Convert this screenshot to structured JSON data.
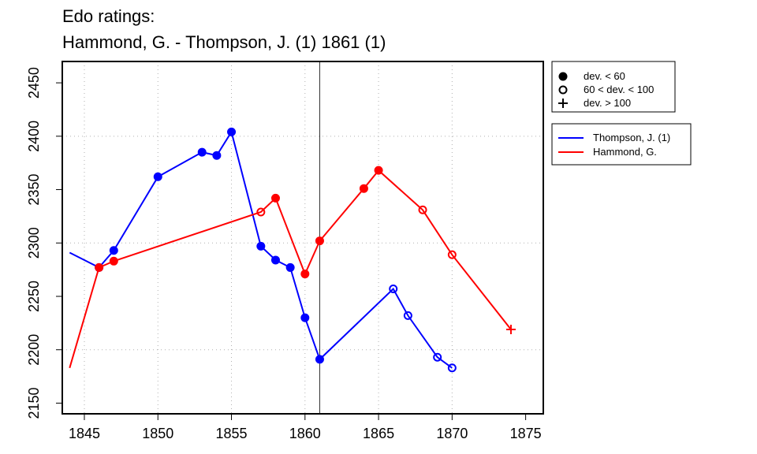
{
  "chart_data": {
    "type": "line",
    "title": "Edo ratings:",
    "subtitle": "Hammond, G. - Thompson, J. (1) 1861 (1)",
    "xlabel": "",
    "ylabel": "",
    "xlim": [
      1843.5,
      1876.2
    ],
    "ylim": [
      2140,
      2470
    ],
    "x_ticks": [
      1845,
      1850,
      1855,
      1860,
      1865,
      1870,
      1875
    ],
    "y_ticks": [
      2150,
      2200,
      2250,
      2300,
      2350,
      2400,
      2450
    ],
    "grid": "dotted at x=1845,1850,1855,1860,1865,1870 and y=2200,2300,2400",
    "reference_line_x": 1861,
    "series": [
      {
        "name": "Thompson, J. (1)",
        "color": "#0000ff",
        "points": [
          {
            "x": 1844,
            "y": 2291,
            "marker": "none"
          },
          {
            "x": 1846,
            "y": 2277,
            "marker": "filled"
          },
          {
            "x": 1847,
            "y": 2293,
            "marker": "filled"
          },
          {
            "x": 1850,
            "y": 2362,
            "marker": "filled"
          },
          {
            "x": 1853,
            "y": 2385,
            "marker": "filled"
          },
          {
            "x": 1854,
            "y": 2382,
            "marker": "filled"
          },
          {
            "x": 1855,
            "y": 2404,
            "marker": "filled"
          },
          {
            "x": 1857,
            "y": 2297,
            "marker": "filled"
          },
          {
            "x": 1858,
            "y": 2284,
            "marker": "filled"
          },
          {
            "x": 1859,
            "y": 2277,
            "marker": "filled"
          },
          {
            "x": 1860,
            "y": 2230,
            "marker": "filled"
          },
          {
            "x": 1861,
            "y": 2191,
            "marker": "filled"
          },
          {
            "x": 1866,
            "y": 2257,
            "marker": "open"
          },
          {
            "x": 1867,
            "y": 2232,
            "marker": "open"
          },
          {
            "x": 1869,
            "y": 2193,
            "marker": "open"
          },
          {
            "x": 1870,
            "y": 2183,
            "marker": "open"
          }
        ]
      },
      {
        "name": "Hammond, G.",
        "color": "#ff0000",
        "points": [
          {
            "x": 1844,
            "y": 2183,
            "marker": "none"
          },
          {
            "x": 1846,
            "y": 2277,
            "marker": "filled"
          },
          {
            "x": 1847,
            "y": 2283,
            "marker": "filled"
          },
          {
            "x": 1857,
            "y": 2329,
            "marker": "open"
          },
          {
            "x": 1858,
            "y": 2342,
            "marker": "filled"
          },
          {
            "x": 1860,
            "y": 2271,
            "marker": "filled"
          },
          {
            "x": 1861,
            "y": 2302,
            "marker": "filled"
          },
          {
            "x": 1864,
            "y": 2351,
            "marker": "filled"
          },
          {
            "x": 1865,
            "y": 2368,
            "marker": "filled"
          },
          {
            "x": 1868,
            "y": 2331,
            "marker": "open"
          },
          {
            "x": 1870,
            "y": 2289,
            "marker": "open"
          },
          {
            "x": 1874,
            "y": 2219,
            "marker": "plus"
          }
        ]
      }
    ],
    "marker_legend": [
      {
        "marker": "filled",
        "label": "dev. < 60"
      },
      {
        "marker": "open",
        "label": "60 < dev. < 100"
      },
      {
        "marker": "plus",
        "label": "dev. > 100"
      }
    ],
    "legend_placement": "right"
  }
}
